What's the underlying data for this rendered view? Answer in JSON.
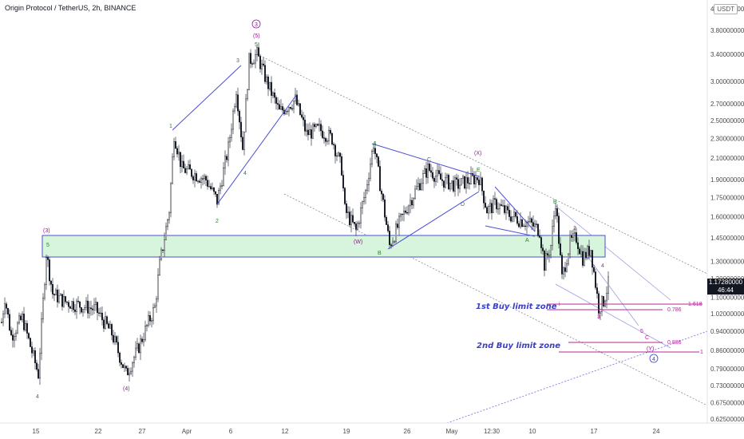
{
  "header": {
    "title": "Origin Protocol / TetherUS, 2h, BINANCE",
    "currency": "USDT"
  },
  "current_price": {
    "value": "1.17280000",
    "countdown": "46:44"
  },
  "zones": {
    "first_buy": "1st Buy limit zone",
    "second_buy": "2nd Buy limit zone"
  },
  "fib_labels": [
    "1.618",
    "0.786",
    "0.886",
    "1"
  ],
  "wave_labels": {
    "circled_3": "3",
    "circled_4": "4",
    "w5": "5",
    "p5": "(5)",
    "w3": "3",
    "w4": "4",
    "w1": "1",
    "w2": "2",
    "p3": "(3)",
    "w5b": "5",
    "w4b": "4",
    "p4": "(4)",
    "pW": "(W)",
    "wB": "B",
    "wA": "A",
    "wC": "C",
    "wD": "D",
    "wE": "E",
    "pX": "(X)",
    "wA2": "A",
    "wB2": "B",
    "r2": "2",
    "r3": "3",
    "r4": "4",
    "r5": "5",
    "rC": "C",
    "pY": "(Y)",
    "ri": "i"
  },
  "colors": {
    "bull": "#ffffff",
    "bear": "#131722",
    "trendline": "#4a4ed6",
    "zone_fill": "#d7f5dc",
    "zone_border": "#4a4ed6",
    "fib": "#b3299e",
    "channel": "#8a8a8a",
    "green_label": "#2e7d32",
    "purple_label": "#8e1a8e",
    "blue_label": "#3b3fc4"
  },
  "chart_data": {
    "type": "candlestick",
    "title": "Origin Protocol / TetherUS, 2h, BINANCE",
    "y_scale": "log",
    "y_ticks": [
      "4.20000000",
      "3.80000000",
      "3.40000000",
      "3.00000000",
      "2.70000000",
      "2.50000000",
      "2.30000000",
      "2.10000000",
      "1.90000000",
      "1.75000000",
      "1.60000000",
      "1.45000000",
      "1.30000000",
      "1.20000000",
      "1.10000000",
      "1.02000000",
      "0.94000000",
      "0.86000000",
      "0.79000000",
      "0.73000000",
      "0.67500000",
      "0.62500000"
    ],
    "ylim": [
      0.6,
      4.5
    ],
    "x_ticks": [
      "15",
      "22",
      "27",
      "Apr",
      "6",
      "12",
      "19",
      "26",
      "May",
      "12:30",
      "10",
      "17",
      "24"
    ],
    "legend": "none",
    "grid": false,
    "approx_path": [
      {
        "x": "15",
        "close": 0.95
      },
      {
        "x": "16",
        "close": 1.35
      },
      {
        "x": "22",
        "close": 1.0
      },
      {
        "x": "25",
        "close": 0.76
      },
      {
        "x": "29",
        "close": 1.3
      },
      {
        "x": "31",
        "close": 2.35
      },
      {
        "x": "Apr 4",
        "close": 1.7
      },
      {
        "x": "Apr 8",
        "close": 3.4
      },
      {
        "x": "Apr 12",
        "close": 2.7
      },
      {
        "x": "Apr 19",
        "close": 2.2
      },
      {
        "x": "Apr 22",
        "close": 1.4
      },
      {
        "x": "Apr 30",
        "close": 2.0
      },
      {
        "x": "May 3",
        "close": 1.5
      },
      {
        "x": "May 14",
        "close": 1.65
      },
      {
        "x": "May 17",
        "close": 1.05
      },
      {
        "x": "May 18",
        "close": 1.17
      }
    ],
    "fib_levels": [
      {
        "ratio": "1.618",
        "price": 1.04
      },
      {
        "ratio": "0.786",
        "price": 1.03
      },
      {
        "ratio": "0.886",
        "price": 0.89
      },
      {
        "ratio": "1",
        "price": 0.86
      }
    ],
    "zone": {
      "low": 1.33,
      "high": 1.47
    }
  }
}
